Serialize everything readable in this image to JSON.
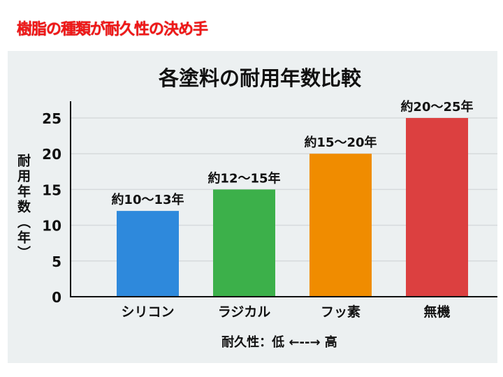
{
  "heading": "樹脂の種類が耐久性の決め手",
  "chart_data": {
    "type": "bar",
    "title": "各塗料の耐用年数比較",
    "ylabel": "耐用年数（年）",
    "xlabel": "耐久性：低 ←--→ 高",
    "categories": [
      "シリコン",
      "ラジカル",
      "フッ素",
      "無機"
    ],
    "values": [
      12,
      15,
      20,
      25
    ],
    "data_labels": [
      "約10〜13年",
      "約12〜15年",
      "約15〜20年",
      "約20〜25年"
    ],
    "colors": [
      "#2e89dc",
      "#3cb04a",
      "#f08c00",
      "#dc4040"
    ],
    "ylim": [
      0,
      27
    ],
    "yticks": [
      0,
      5,
      10,
      15,
      20,
      25
    ],
    "grid": true
  }
}
